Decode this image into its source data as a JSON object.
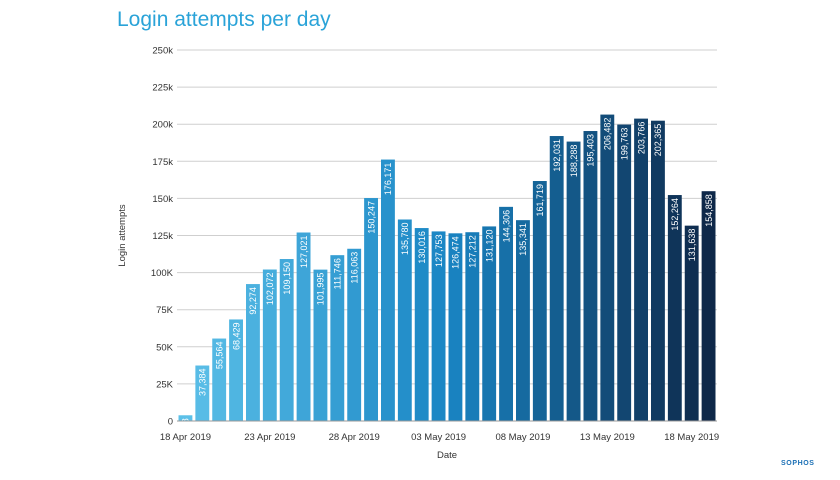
{
  "chart_data": {
    "type": "bar",
    "title": "Login attempts per day",
    "xlabel": "Date",
    "ylabel": "Login attempts",
    "ylim": [
      0,
      250000
    ],
    "yticks": [
      {
        "value": 0,
        "label": "0"
      },
      {
        "value": 25000,
        "label": "25K"
      },
      {
        "value": 50000,
        "label": "50K"
      },
      {
        "value": 75000,
        "label": "75K"
      },
      {
        "value": 100000,
        "label": "100K"
      },
      {
        "value": 125000,
        "label": "125k"
      },
      {
        "value": 150000,
        "label": "150k"
      },
      {
        "value": 175000,
        "label": "175k"
      },
      {
        "value": 200000,
        "label": "200k"
      },
      {
        "value": 225000,
        "label": "225k"
      },
      {
        "value": 250000,
        "label": "250k"
      }
    ],
    "xticks": [
      {
        "index": 0,
        "label": "18 Apr 2019"
      },
      {
        "index": 5,
        "label": "23 Apr 2019"
      },
      {
        "index": 10,
        "label": "28 Apr 2019"
      },
      {
        "index": 15,
        "label": "03 May 2019"
      },
      {
        "index": 20,
        "label": "08 May 2019"
      },
      {
        "index": 25,
        "label": "13 May 2019"
      },
      {
        "index": 30,
        "label": "18 May 2019"
      }
    ],
    "grid": true,
    "categories": [
      "18 Apr 2019",
      "19 Apr 2019",
      "20 Apr 2019",
      "21 Apr 2019",
      "22 Apr 2019",
      "23 Apr 2019",
      "24 Apr 2019",
      "25 Apr 2019",
      "26 Apr 2019",
      "27 Apr 2019",
      "28 Apr 2019",
      "29 Apr 2019",
      "30 Apr 2019",
      "01 May 2019",
      "02 May 2019",
      "03 May 2019",
      "04 May 2019",
      "05 May 2019",
      "06 May 2019",
      "07 May 2019",
      "08 May 2019",
      "09 May 2019",
      "10 May 2019",
      "11 May 2019",
      "12 May 2019",
      "13 May 2019",
      "14 May 2019",
      "15 May 2019",
      "16 May 2019",
      "17 May 2019",
      "18 May 2019",
      "19 May 2019"
    ],
    "values": [
      3858,
      37384,
      55564,
      68429,
      92274,
      102072,
      109150,
      127021,
      101995,
      111746,
      116063,
      150247,
      176171,
      135780,
      130016,
      127753,
      126474,
      127212,
      131120,
      144306,
      135341,
      161719,
      192031,
      188288,
      195403,
      206482,
      199763,
      203766,
      202365,
      152264,
      131638,
      154858
    ],
    "value_labels": [
      "3,858",
      "37,384",
      "55,564",
      "68,429",
      "92,274",
      "102,072",
      "109,150",
      "127,021",
      "101,995",
      "111,746",
      "116,063",
      "150,247",
      "176,171",
      "135,780",
      "130,016",
      "127,753",
      "126,474",
      "127,212",
      "131,120",
      "144,306",
      "135,341",
      "161,719",
      "192,031",
      "188,288",
      "195,403",
      "206,482",
      "199,763",
      "203,766",
      "202,365",
      "152,264",
      "131,638",
      "154,858"
    ],
    "colors": {
      "gradient_start": "#5cc0e8",
      "gradient_mid": "#1985c4",
      "gradient_end": "#0e2849",
      "title": "#2aa3d8",
      "grid": "#cfcfcf"
    }
  },
  "brand": {
    "logo_text": "SOPHOS"
  }
}
